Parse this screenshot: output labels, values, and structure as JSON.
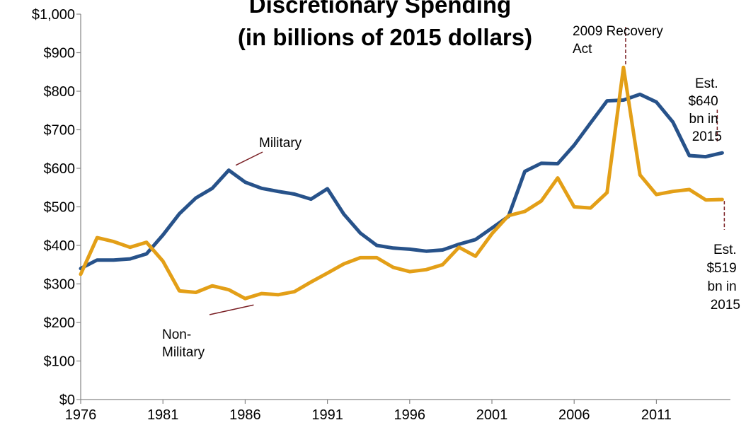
{
  "chart_data": {
    "type": "line",
    "title": "Discretionary Spending",
    "subtitle": "(in billions of 2015 dollars)",
    "xlabel": "",
    "ylabel": "",
    "x": [
      1976,
      1977,
      1978,
      1979,
      1980,
      1981,
      1982,
      1983,
      1984,
      1985,
      1986,
      1987,
      1988,
      1989,
      1990,
      1991,
      1992,
      1993,
      1994,
      1995,
      1996,
      1997,
      1998,
      1999,
      2000,
      2001,
      2002,
      2003,
      2004,
      2005,
      2006,
      2007,
      2008,
      2009,
      2010,
      2011,
      2012,
      2013,
      2014,
      2015
    ],
    "x_ticks": [
      1976,
      1981,
      1986,
      1991,
      1996,
      2001,
      2006,
      2011
    ],
    "x_tick_labels": [
      "1976",
      "1981",
      "1986",
      "1991",
      "1996",
      "2001",
      "2006",
      "2011"
    ],
    "xlim": [
      1976,
      2015.5
    ],
    "ylim": [
      0,
      1000
    ],
    "y_ticks": [
      0,
      100,
      200,
      300,
      400,
      500,
      600,
      700,
      800,
      900,
      1000
    ],
    "y_tick_labels": [
      "$0",
      "$100",
      "$200",
      "$300",
      "$400",
      "$500",
      "$600",
      "$700",
      "$800",
      "$900",
      "$1,000"
    ],
    "grid": false,
    "legend": "none",
    "series": [
      {
        "name": "Military",
        "color": "#27528A",
        "values": [
          340,
          362,
          362,
          365,
          378,
          427,
          482,
          523,
          548,
          595,
          564,
          548,
          540,
          533,
          520,
          547,
          481,
          432,
          400,
          393,
          390,
          385,
          388,
          403,
          415,
          445,
          475,
          592,
          613,
          612,
          660,
          718,
          775,
          777,
          792,
          772,
          720,
          633,
          630,
          640
        ]
      },
      {
        "name": "Non-Military",
        "color": "#E39F17",
        "values": [
          325,
          420,
          410,
          395,
          408,
          359,
          282,
          278,
          295,
          285,
          262,
          275,
          272,
          280,
          305,
          328,
          352,
          368,
          368,
          343,
          332,
          337,
          350,
          395,
          372,
          430,
          477,
          488,
          515,
          575,
          500,
          497,
          537,
          862,
          583,
          532,
          540,
          545,
          518,
          519
        ]
      }
    ],
    "annotations": [
      {
        "id": "military",
        "lines": [
          "Military"
        ],
        "series": 0,
        "target_x": 1985
      },
      {
        "id": "non-military",
        "lines": [
          "Non-",
          "Military"
        ],
        "series": 1,
        "target_x": 1986
      },
      {
        "id": "recovery-act",
        "lines": [
          "2009 Recovery",
          "Act"
        ],
        "series": 1,
        "target_x": 2009
      },
      {
        "id": "est-military",
        "lines": [
          "Est.",
          "$640",
          "bn in",
          "2015"
        ],
        "series": 0,
        "target_x": 2015
      },
      {
        "id": "est-non-military",
        "lines": [
          "Est.",
          "$519",
          "bn in",
          "2015"
        ],
        "series": 1,
        "target_x": 2015
      }
    ]
  }
}
